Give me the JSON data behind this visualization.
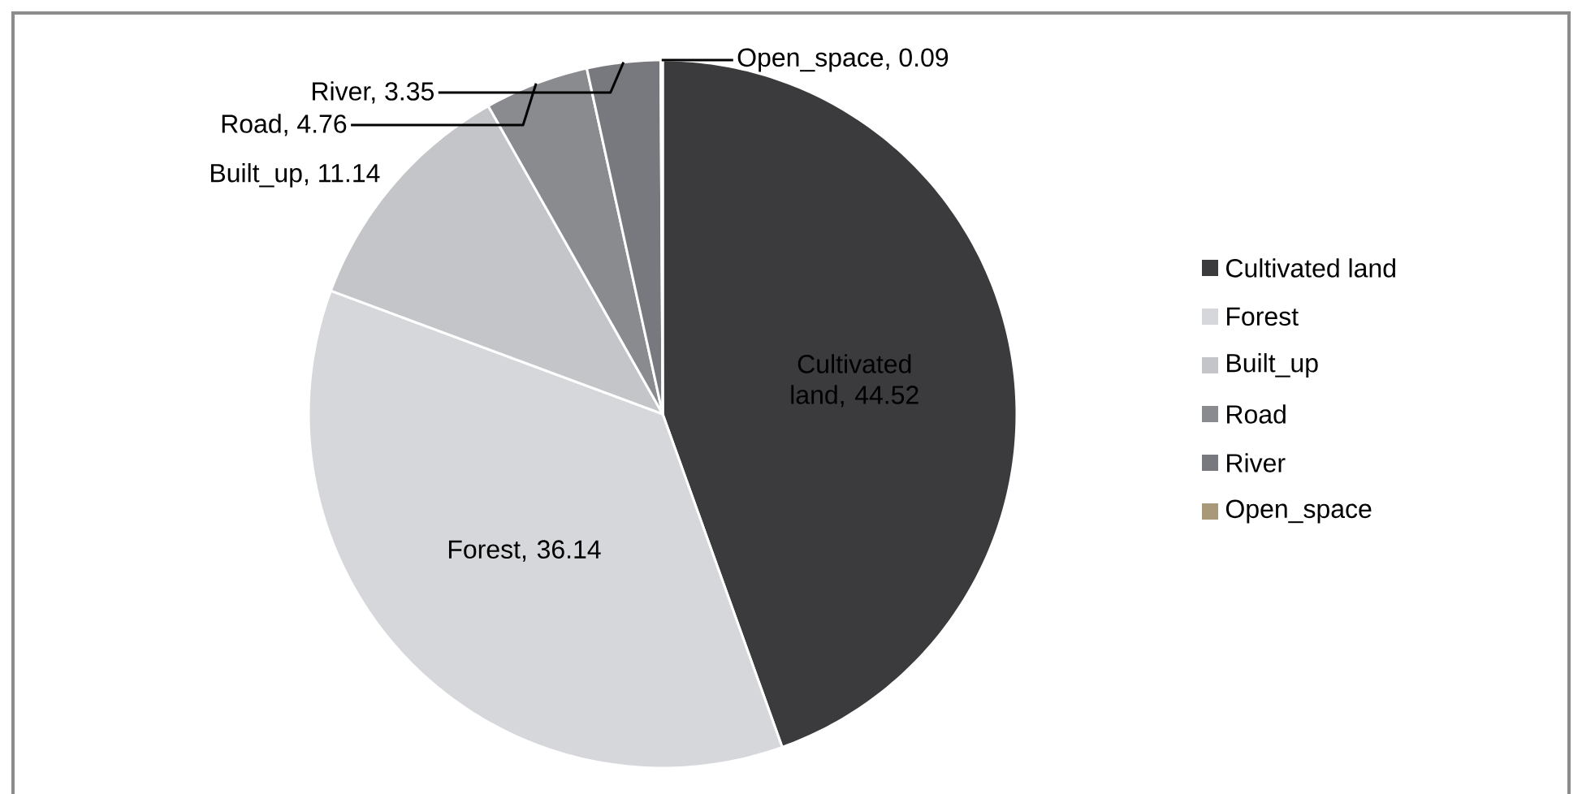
{
  "chart_data": {
    "type": "pie",
    "categories": [
      "Cultivated land",
      "Forest",
      "Built_up",
      "Road",
      "River",
      "Open_space"
    ],
    "values": [
      44.52,
      36.14,
      11.14,
      4.76,
      3.35,
      0.09
    ],
    "colors": [
      "#3b3b3e",
      "#d5d7db",
      "#c3c5c9",
      "#898b8f",
      "#77797f",
      "#a89a78"
    ],
    "value_labels": [
      "Cultivated land, 44.52",
      "Forest, 36.14",
      "Built_up, 11.14",
      "Road, 4.76",
      "River, 3.35",
      "Open_space, 0.09"
    ],
    "legend": "right"
  }
}
